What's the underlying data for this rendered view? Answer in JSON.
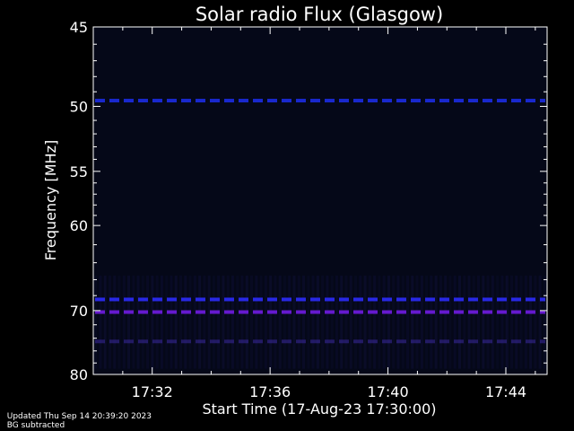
{
  "chart_data": {
    "type": "heatmap",
    "title": "Solar radio Flux (Glasgow)",
    "xlabel": "Start Time (17-Aug-23 17:30:00)",
    "ylabel": "Frequency [MHz]",
    "x_ticks": [
      "17:32",
      "17:36",
      "17:40",
      "17:44"
    ],
    "x_tick_minutes": [
      2,
      6,
      10,
      14
    ],
    "xlim_minutes": [
      0,
      15.4
    ],
    "y_ticks": [
      45,
      50,
      55,
      60,
      70,
      80
    ],
    "ylim": [
      45,
      80
    ],
    "y_scale": "reciprocal",
    "bands": [
      {
        "freq": 49.6,
        "color": "#1a2ad8"
      },
      {
        "freq": 68.5,
        "color": "#2a2af0"
      },
      {
        "freq": 70.2,
        "color": "#6a1ad8"
      },
      {
        "freq": 74.5,
        "color": "#3a2aa0"
      }
    ],
    "background_color": "#050818",
    "line_color": "#ffffff"
  },
  "footer": {
    "updated": "Updated Thu Sep 14 20:39:20 2023",
    "mode": "BG subtracted"
  }
}
